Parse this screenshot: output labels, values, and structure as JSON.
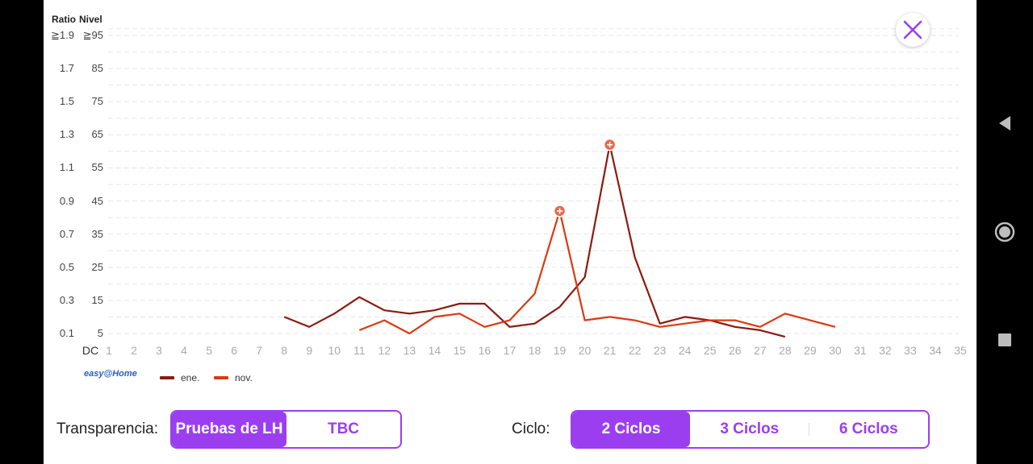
{
  "chart_data": {
    "type": "line",
    "header": {
      "ratio": "Ratio",
      "nivel": "Nivel"
    },
    "y_ratio_ticks": [
      "≧1.9",
      "1.7",
      "1.5",
      "1.3",
      "1.1",
      "0.9",
      "0.7",
      "0.5",
      "0.3",
      "0.1"
    ],
    "y_level_ticks": [
      "≧95",
      "85",
      "75",
      "65",
      "55",
      "45",
      "35",
      "25",
      "15",
      "5"
    ],
    "ylim": [
      5,
      95
    ],
    "xlabel": "DC",
    "x": [
      1,
      2,
      3,
      4,
      5,
      6,
      7,
      8,
      9,
      10,
      11,
      12,
      13,
      14,
      15,
      16,
      17,
      18,
      19,
      20,
      21,
      22,
      23,
      24,
      25,
      26,
      27,
      28,
      29,
      30,
      31,
      32,
      33,
      34,
      35
    ],
    "grid": true,
    "series": [
      {
        "name": "ene.",
        "color": "#8b1a10",
        "points": [
          [
            8,
            10
          ],
          [
            9,
            7
          ],
          [
            10,
            11
          ],
          [
            11,
            16
          ],
          [
            12,
            12
          ],
          [
            13,
            11
          ],
          [
            14,
            12
          ],
          [
            15,
            14
          ],
          [
            16,
            14
          ],
          [
            17,
            7
          ],
          [
            18,
            8
          ],
          [
            19,
            13
          ],
          [
            20,
            22
          ],
          [
            21,
            62
          ],
          [
            22,
            28
          ],
          [
            23,
            8
          ],
          [
            24,
            10
          ],
          [
            25,
            9
          ],
          [
            26,
            7
          ],
          [
            27,
            6
          ],
          [
            28,
            4
          ]
        ]
      },
      {
        "name": "nov.",
        "color": "#d93a10",
        "points": [
          [
            11,
            6
          ],
          [
            12,
            9
          ],
          [
            13,
            5
          ],
          [
            14,
            10
          ],
          [
            15,
            11
          ],
          [
            16,
            7
          ],
          [
            17,
            9
          ],
          [
            18,
            17
          ],
          [
            19,
            42
          ],
          [
            20,
            9
          ],
          [
            21,
            10
          ],
          [
            22,
            9
          ],
          [
            23,
            7
          ],
          [
            24,
            8
          ],
          [
            25,
            9
          ],
          [
            26,
            9
          ],
          [
            27,
            7
          ],
          [
            28,
            11
          ],
          [
            29,
            9
          ],
          [
            30,
            7
          ]
        ]
      }
    ],
    "peak_markers": [
      {
        "x": 19,
        "y": 42,
        "color": "#e8684c",
        "symbol": "+"
      },
      {
        "x": 21,
        "y": 62,
        "color": "#e8684c",
        "symbol": "+"
      }
    ],
    "legend_placement": "bottom-left"
  },
  "logo": {
    "text": "easy@Home"
  },
  "controls": {
    "transparencia_label": "Transparencia:",
    "transparencia_options": [
      "Pruebas de LH",
      "TBC"
    ],
    "ciclo_label": "Ciclo:",
    "ciclo_options": [
      "2 Ciclos",
      "3 Ciclos",
      "6 Ciclos"
    ]
  },
  "colors": {
    "accent": "#9b3ef0",
    "marker": "#e8684c"
  },
  "icons": {
    "close": "close-icon",
    "back": "back-triangle-icon",
    "home": "home-circle-icon",
    "recents": "recents-square-icon"
  }
}
